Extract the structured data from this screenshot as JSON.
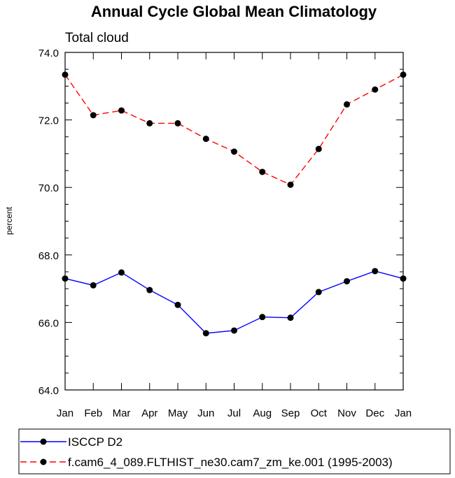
{
  "chart_data": {
    "type": "line",
    "title": "Annual Cycle Global Mean Climatology",
    "subtitle": "Total cloud",
    "xlabel": "",
    "ylabel": "percent",
    "categories": [
      "Jan",
      "Feb",
      "Mar",
      "Apr",
      "May",
      "Jun",
      "Jul",
      "Aug",
      "Sep",
      "Oct",
      "Nov",
      "Dec",
      "Jan"
    ],
    "ylim": [
      64.0,
      74.0
    ],
    "yticks": [
      "64.0",
      "66.0",
      "68.0",
      "70.0",
      "72.0",
      "74.0"
    ],
    "series": [
      {
        "name": "ISCCP D2",
        "color": "#0000ff",
        "dash": "solid",
        "values": [
          67.3,
          67.1,
          67.48,
          66.96,
          66.52,
          65.68,
          65.76,
          66.16,
          66.14,
          66.9,
          67.22,
          67.52,
          67.3
        ]
      },
      {
        "name": "f.cam6_4_089.FLTHIST_ne30.cam7_zm_ke.001 (1995-2003)",
        "color": "#ff0000",
        "dash": "dashed",
        "values": [
          73.34,
          72.14,
          72.28,
          71.9,
          71.9,
          71.44,
          71.06,
          70.46,
          70.08,
          71.14,
          72.46,
          72.9,
          73.34
        ]
      }
    ],
    "legend_position": "bottom"
  }
}
